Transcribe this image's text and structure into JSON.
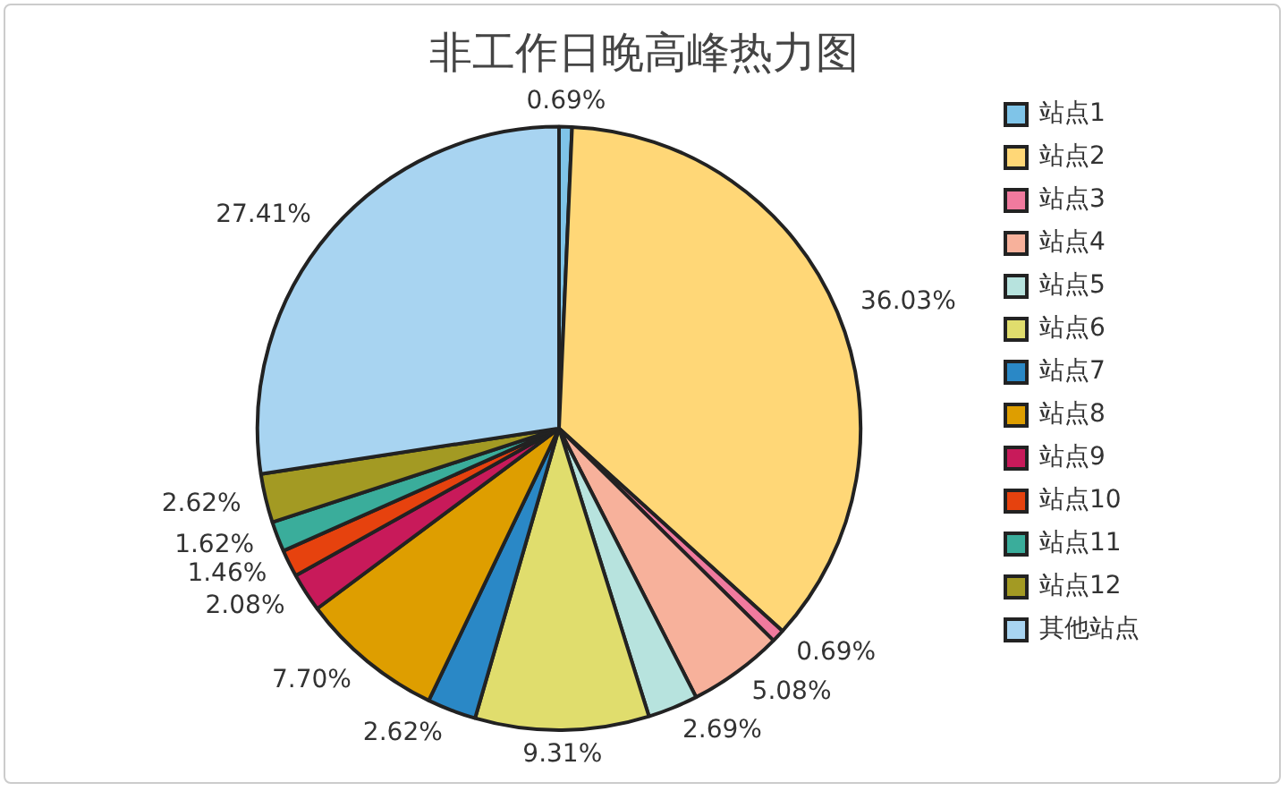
{
  "chart_data": {
    "type": "pie",
    "title": "非工作日晚高峰热力图",
    "categories": [
      "站点1",
      "站点2",
      "站点3",
      "站点4",
      "站点5",
      "站点6",
      "站点7",
      "站点8",
      "站点9",
      "站点10",
      "站点11",
      "站点12",
      "其他站点"
    ],
    "values": [
      0.69,
      36.03,
      0.69,
      5.08,
      2.69,
      9.31,
      2.62,
      7.7,
      2.08,
      1.46,
      1.62,
      2.62,
      27.41
    ],
    "value_labels": [
      "0.69%",
      "36.03%",
      "0.69%",
      "5.08%",
      "2.69%",
      "9.31%",
      "2.62%",
      "7.70%",
      "2.08%",
      "1.46%",
      "1.62%",
      "2.62%",
      "27.41%"
    ],
    "colors": [
      "#7fc4e8",
      "#ffd777",
      "#f07a9e",
      "#f7b19b",
      "#b7e3de",
      "#e0dd6d",
      "#2a88c6",
      "#de9e00",
      "#c81a5a",
      "#e6420e",
      "#3aad9b",
      "#a39a23",
      "#a8d4f1"
    ],
    "legend": "right"
  }
}
